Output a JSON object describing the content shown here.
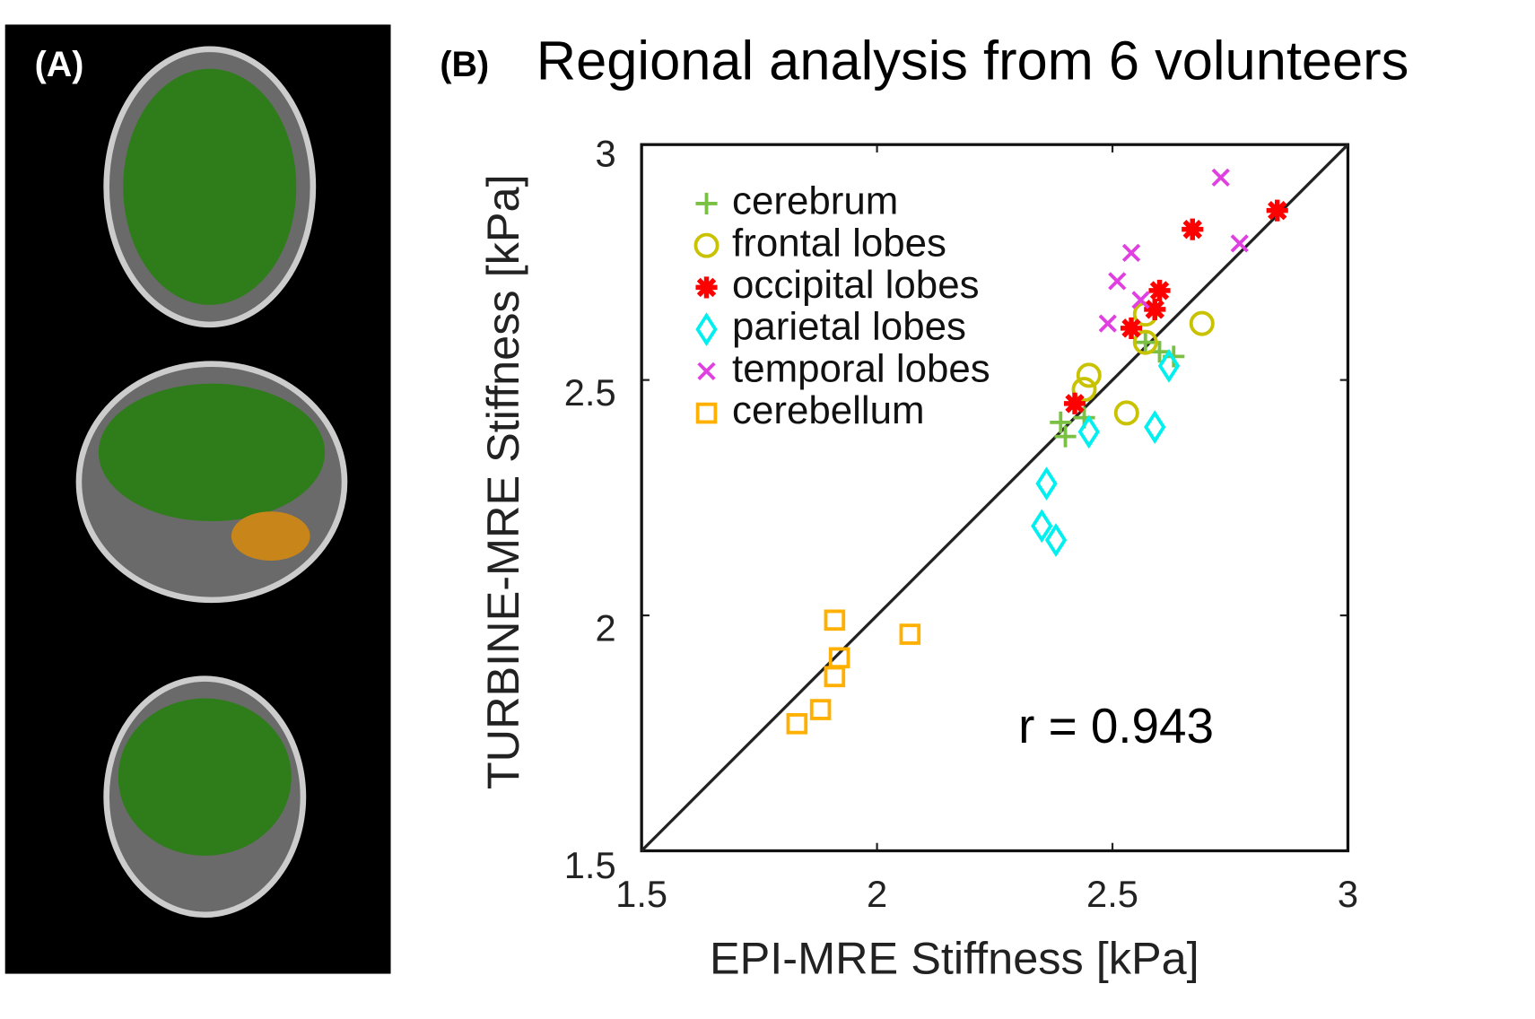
{
  "panel_a": {
    "label": "(A)"
  },
  "chart_data": {
    "type": "scatter",
    "panel_label": "(B)",
    "title": "Regional analysis from 6 volunteers",
    "x_label": "EPI-MRE Stiffness [kPa]",
    "y_label": "TURBINE-MRE Stiffness [kPa]",
    "annotation": "r = 0.943",
    "xlim": [
      1.5,
      3
    ],
    "ylim": [
      1.5,
      3
    ],
    "xticks": [
      1.5,
      2,
      2.5,
      3
    ],
    "yticks": [
      1.5,
      2,
      2.5,
      3
    ],
    "grid": false,
    "identity_line": true,
    "legend": "upper left",
    "series": [
      {
        "name": "cerebrum",
        "color": "#7ac143",
        "marker": "plus",
        "x": [
          2.4,
          2.39,
          2.44,
          2.57,
          2.6,
          2.63
        ],
        "values": [
          2.38,
          2.41,
          2.42,
          2.58,
          2.56,
          2.55
        ]
      },
      {
        "name": "frontal lobes",
        "color": "#c8c200",
        "marker": "circle",
        "x": [
          2.45,
          2.44,
          2.53,
          2.57,
          2.69,
          2.57
        ],
        "values": [
          2.51,
          2.48,
          2.43,
          2.58,
          2.62,
          2.64
        ]
      },
      {
        "name": "occipital lobes",
        "color": "#ff0000",
        "marker": "star",
        "x": [
          2.42,
          2.54,
          2.59,
          2.6,
          2.67,
          2.85
        ],
        "values": [
          2.45,
          2.61,
          2.65,
          2.69,
          2.82,
          2.86
        ]
      },
      {
        "name": "parietal lobes",
        "color": "#00f0f0",
        "marker": "diamond",
        "x": [
          2.36,
          2.35,
          2.38,
          2.45,
          2.59,
          2.62
        ],
        "values": [
          2.28,
          2.19,
          2.16,
          2.39,
          2.4,
          2.53
        ]
      },
      {
        "name": "temporal lobes",
        "color": "#e040e0",
        "marker": "cross",
        "x": [
          2.49,
          2.51,
          2.54,
          2.56,
          2.73,
          2.77
        ],
        "values": [
          2.62,
          2.71,
          2.77,
          2.67,
          2.93,
          2.79
        ]
      },
      {
        "name": "cerebellum",
        "color": "#ffb000",
        "marker": "square",
        "x": [
          1.91,
          1.92,
          1.91,
          1.88,
          1.83,
          2.07
        ],
        "values": [
          1.99,
          1.91,
          1.87,
          1.8,
          1.77,
          1.96
        ]
      }
    ]
  }
}
